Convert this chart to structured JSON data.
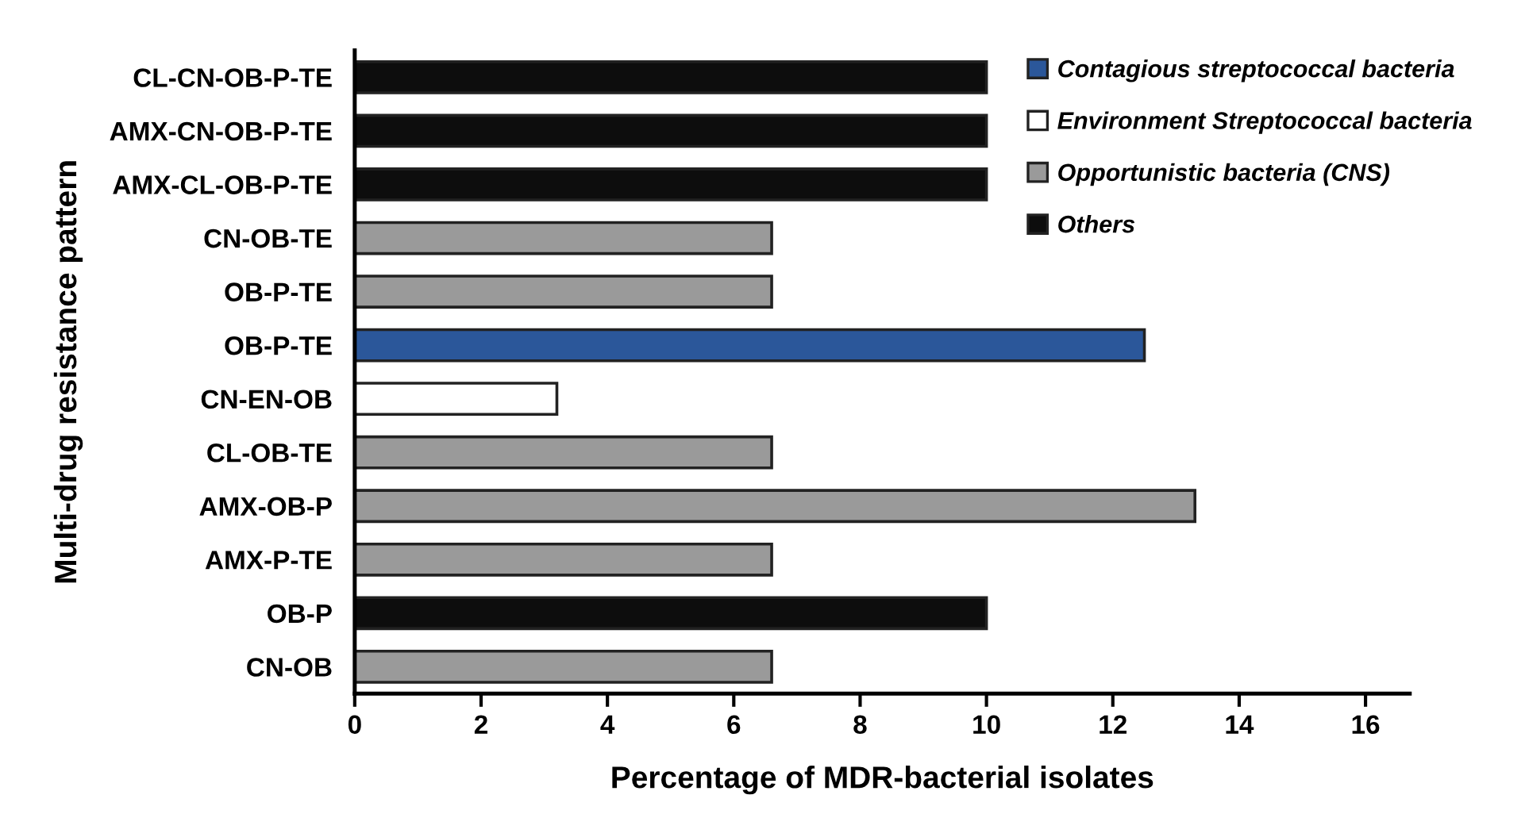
{
  "chart_data": {
    "type": "bar",
    "orientation": "horizontal",
    "xlabel": "Percentage of MDR-bacterial isolates",
    "ylabel": "Multi-drug resistance pattern",
    "categories": [
      "CL-CN-OB-P-TE",
      "AMX-CN-OB-P-TE",
      "AMX-CL-OB-P-TE",
      "CN-OB-TE",
      "OB-P-TE",
      "OB-P-TE",
      "CN-EN-OB",
      "CL-OB-TE",
      "AMX-OB-P",
      "AMX-P-TE",
      "OB-P",
      "CN-OB"
    ],
    "series": [
      {
        "name": "Contagious streptococcal bacteria",
        "color": "#2b579a",
        "values": [
          null,
          null,
          null,
          null,
          null,
          12.5,
          null,
          null,
          null,
          null,
          null,
          null
        ]
      },
      {
        "name": "Environment Streptococcal bacteria",
        "color": "#ffffff",
        "values": [
          null,
          null,
          null,
          null,
          null,
          null,
          3.2,
          null,
          null,
          null,
          null,
          null
        ]
      },
      {
        "name": "Opportunistic bacteria (CNS)",
        "color": "#9a9a9a",
        "values": [
          null,
          null,
          null,
          6.6,
          6.6,
          null,
          null,
          6.6,
          13.3,
          6.6,
          null,
          6.6
        ]
      },
      {
        "name": "Others",
        "color": "#0d0d0d",
        "values": [
          10,
          10,
          10,
          null,
          null,
          null,
          null,
          null,
          null,
          null,
          10,
          null
        ]
      }
    ],
    "xlim": [
      0,
      16.7
    ],
    "xticks": [
      0,
      2,
      4,
      6,
      8,
      10,
      12,
      14,
      16
    ],
    "grid": false,
    "legend": "top right"
  }
}
